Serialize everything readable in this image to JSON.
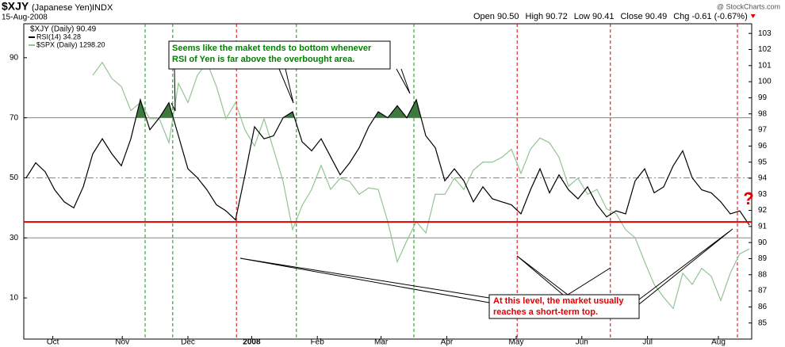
{
  "chart_data": {
    "type": "line",
    "symbol": "$XJY",
    "name": "(Japanese Yen)",
    "exchange": "INDX",
    "date": "15-Aug-2008",
    "quote": [
      "Open 90.50",
      "High 90.72",
      "Low 90.41",
      "Close 90.49",
      "Chg -0.61 (-0.67%)"
    ],
    "watermark": "@ StockCharts.com",
    "legend_header": "$XJY (Daily) 90.49",
    "xlim": [
      0,
      76
    ],
    "xticks": [
      {
        "value": 2.8,
        "label": "Oct"
      },
      {
        "value": 10.1,
        "label": "Nov"
      },
      {
        "value": 17,
        "label": "Dec"
      },
      {
        "value": 23.7,
        "label": "2008"
      },
      {
        "value": 30.6,
        "label": "Feb"
      },
      {
        "value": 37.3,
        "label": "Mar"
      },
      {
        "value": 44.2,
        "label": "Apr"
      },
      {
        "value": 51.5,
        "label": "May"
      },
      {
        "value": 58.4,
        "label": "Jun"
      },
      {
        "value": 65.3,
        "label": "Jul"
      },
      {
        "value": 72.75,
        "label": "Aug"
      }
    ],
    "ylim": [
      -3.7,
      101.3
    ],
    "yticks": [
      10,
      30,
      50,
      70,
      90
    ],
    "y2lim": [
      84,
      103.6
    ],
    "y2ticks": [
      85,
      86,
      87,
      88,
      89,
      90,
      91,
      92,
      93,
      94,
      95,
      96,
      97,
      98,
      99,
      100,
      101,
      102,
      103
    ],
    "reference_lines": [
      70,
      50,
      30
    ],
    "overbought": 70,
    "support_level": 35.3,
    "support_color": "#e00000",
    "vlines": [
      {
        "x": 12.5,
        "color": "#00a000"
      },
      {
        "x": 15.4,
        "color": "#00a000"
      },
      {
        "x": 28.4,
        "color": "#00a000"
      },
      {
        "x": 40.75,
        "color": "#00a000"
      },
      {
        "x": 22.1,
        "color": "#e00000"
      },
      {
        "x": 51.6,
        "color": "#e00000"
      },
      {
        "x": 61.4,
        "color": "#e00000"
      },
      {
        "x": 74.75,
        "color": "#e00000"
      }
    ],
    "series": [
      {
        "name": "$SPX (Daily) 1298.20",
        "color": "#93c493",
        "axis": "y2",
        "values": [
          null,
          null,
          null,
          null,
          null,
          null,
          null,
          100.4,
          101.2,
          100.2,
          99.7,
          98.2,
          98.7,
          97.7,
          97.7,
          96.2,
          99.9,
          98.7,
          100.4,
          101.2,
          99.7,
          97.7,
          98.7,
          97.0,
          96.0,
          97.7,
          95.8,
          93.8,
          90.8,
          92.3,
          93.3,
          94.8,
          93.3,
          94.0,
          93.8,
          93.0,
          93.4,
          93.3,
          91.3,
          88.8,
          90.1,
          91.3,
          90.6,
          93.0,
          93.0,
          94.0,
          93.3,
          94.5,
          95.0,
          95.0,
          95.3,
          95.8,
          94.3,
          95.8,
          96.5,
          96.2,
          95.3,
          93.5,
          94.0,
          93.0,
          93.3,
          92.1,
          91.8,
          90.8,
          90.3,
          88.8,
          87.4,
          86.6,
          85.9,
          88.1,
          87.4,
          88.4,
          87.9,
          86.4,
          88.1,
          89.3,
          89.6
        ]
      },
      {
        "name": "RSI(14) 34.28",
        "color": "#000000",
        "fill": "#3d7a3d",
        "values": [
          50,
          55,
          52,
          46,
          42,
          40,
          47,
          58,
          63,
          58,
          54,
          63,
          76,
          66,
          70,
          75,
          64,
          53,
          50,
          46,
          41,
          39,
          36,
          51,
          67,
          63,
          64,
          70,
          72,
          62,
          59,
          63,
          57,
          51,
          55,
          60,
          67,
          72,
          70,
          74,
          70,
          76,
          64,
          60,
          49,
          53,
          49,
          42,
          47,
          43,
          42,
          41,
          38,
          46,
          53,
          45,
          51,
          46,
          43,
          47,
          41,
          37,
          39,
          38,
          49,
          53,
          45,
          47,
          54,
          59,
          50,
          46,
          45,
          42,
          38,
          39,
          34.28
        ]
      }
    ],
    "annotations": [
      {
        "lines": [
          "Seems like the maket tends to bottom whenever",
          "RSI of Yen is far above the overbought area."
        ],
        "color": "#008000"
      },
      {
        "lines": [
          "At this level, the market usually",
          "reaches a short-term top."
        ],
        "color": "#e00000"
      }
    ],
    "question_mark": "?"
  }
}
